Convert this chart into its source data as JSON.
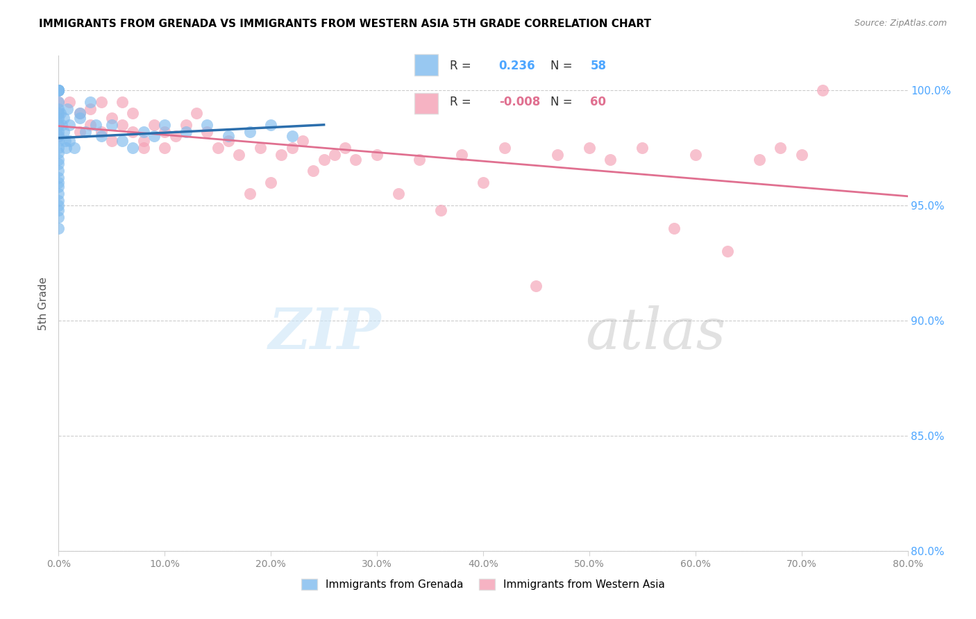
{
  "title": "IMMIGRANTS FROM GRENADA VS IMMIGRANTS FROM WESTERN ASIA 5TH GRADE CORRELATION CHART",
  "source": "Source: ZipAtlas.com",
  "ylabel": "5th Grade",
  "blue_color": "#7fbbee",
  "pink_color": "#f4a0b5",
  "trend_blue_color": "#2c6fad",
  "trend_pink_color": "#e07090",
  "blue_R": "0.236",
  "blue_N": "58",
  "pink_R": "-0.008",
  "pink_N": "60",
  "xlim": [
    0.0,
    0.8
  ],
  "ylim": [
    80.0,
    101.5
  ],
  "y_ticks": [
    80.0,
    85.0,
    90.0,
    95.0,
    100.0
  ],
  "x_ticks": [
    0.0,
    0.1,
    0.2,
    0.3,
    0.4,
    0.5,
    0.6,
    0.7,
    0.8
  ],
  "blue_scatter_x": [
    0.0,
    0.0,
    0.0,
    0.0,
    0.0,
    0.0,
    0.0,
    0.0,
    0.0,
    0.0,
    0.0,
    0.0,
    0.0,
    0.0,
    0.0,
    0.0,
    0.0,
    0.0,
    0.0,
    0.0,
    0.0,
    0.0,
    0.0,
    0.0,
    0.0,
    0.0,
    0.0,
    0.0,
    0.0,
    0.0,
    0.002,
    0.003,
    0.005,
    0.005,
    0.006,
    0.007,
    0.008,
    0.01,
    0.01,
    0.015,
    0.02,
    0.02,
    0.025,
    0.03,
    0.035,
    0.04,
    0.05,
    0.06,
    0.07,
    0.08,
    0.09,
    0.1,
    0.12,
    0.14,
    0.16,
    0.18,
    0.2,
    0.22
  ],
  "blue_scatter_y": [
    100.0,
    100.0,
    100.0,
    100.0,
    100.0,
    100.0,
    100.0,
    100.0,
    99.5,
    99.2,
    99.0,
    98.8,
    98.5,
    98.2,
    98.0,
    97.8,
    97.5,
    97.3,
    97.0,
    96.8,
    96.5,
    96.2,
    96.0,
    95.8,
    95.5,
    95.2,
    95.0,
    94.8,
    94.5,
    94.0,
    99.0,
    98.5,
    98.8,
    98.2,
    97.8,
    97.5,
    99.2,
    98.5,
    97.8,
    97.5,
    99.0,
    98.8,
    98.2,
    99.5,
    98.5,
    98.0,
    98.5,
    97.8,
    97.5,
    98.2,
    98.0,
    98.5,
    98.2,
    98.5,
    98.0,
    98.2,
    98.5,
    98.0
  ],
  "pink_scatter_x": [
    0.0,
    0.0,
    0.0,
    0.0,
    0.0,
    0.01,
    0.02,
    0.02,
    0.03,
    0.03,
    0.04,
    0.04,
    0.05,
    0.05,
    0.06,
    0.06,
    0.07,
    0.07,
    0.08,
    0.08,
    0.09,
    0.1,
    0.1,
    0.11,
    0.12,
    0.13,
    0.14,
    0.15,
    0.16,
    0.17,
    0.18,
    0.19,
    0.2,
    0.21,
    0.22,
    0.23,
    0.24,
    0.25,
    0.26,
    0.27,
    0.28,
    0.3,
    0.32,
    0.34,
    0.36,
    0.38,
    0.4,
    0.42,
    0.45,
    0.47,
    0.5,
    0.52,
    0.55,
    0.58,
    0.6,
    0.63,
    0.66,
    0.68,
    0.7,
    0.72
  ],
  "pink_scatter_y": [
    100.0,
    99.5,
    99.0,
    98.5,
    98.0,
    99.5,
    99.0,
    98.2,
    99.2,
    98.5,
    99.5,
    98.2,
    98.8,
    97.8,
    99.5,
    98.5,
    99.0,
    98.2,
    97.8,
    97.5,
    98.5,
    98.2,
    97.5,
    98.0,
    98.5,
    99.0,
    98.2,
    97.5,
    97.8,
    97.2,
    95.5,
    97.5,
    96.0,
    97.2,
    97.5,
    97.8,
    96.5,
    97.0,
    97.2,
    97.5,
    97.0,
    97.2,
    95.5,
    97.0,
    94.8,
    97.2,
    96.0,
    97.5,
    91.5,
    97.2,
    97.5,
    97.0,
    97.5,
    94.0,
    97.2,
    93.0,
    97.0,
    97.5,
    97.2,
    100.0
  ]
}
